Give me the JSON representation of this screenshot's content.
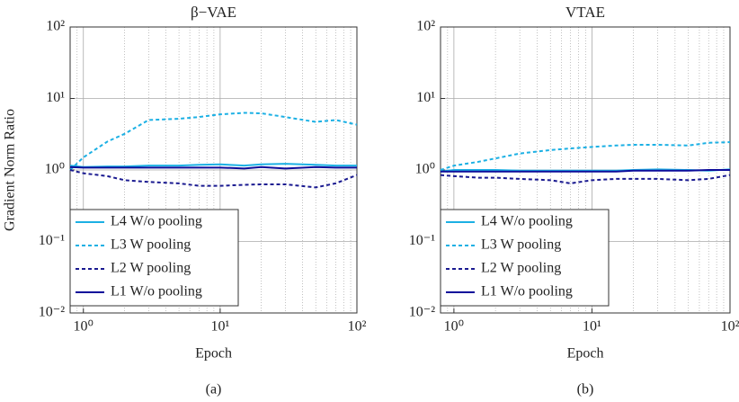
{
  "chart_data": [
    {
      "type": "line",
      "title": "β−VAE",
      "xlabel": "Epoch",
      "ylabel": "Gradient Norm Ratio",
      "caption": "(a)",
      "xscale": "log",
      "yscale": "log",
      "grid": true,
      "minor_grid": true,
      "legend": "lower left",
      "xlim": [
        0.8,
        100
      ],
      "ylim": [
        0.01,
        100
      ],
      "xticks": [
        {
          "value": 1,
          "label": "10⁰"
        },
        {
          "value": 10,
          "label": "10¹"
        },
        {
          "value": 100,
          "label": "10²"
        }
      ],
      "yticks": [
        {
          "value": 0.01,
          "label": "10⁻²"
        },
        {
          "value": 0.1,
          "label": "10⁻¹"
        },
        {
          "value": 1,
          "label": "10⁰"
        },
        {
          "value": 10,
          "label": "10¹"
        },
        {
          "value": 100,
          "label": "10²"
        }
      ],
      "x": [
        0.8,
        1,
        1.5,
        2,
        3,
        5,
        7,
        10,
        15,
        20,
        30,
        50,
        70,
        100
      ],
      "series": [
        {
          "name": "L4 W/o pooling",
          "color": "#1cb0e4",
          "line_style": "solid",
          "values": [
            1.15,
            1.1,
            1.12,
            1.12,
            1.15,
            1.15,
            1.18,
            1.2,
            1.15,
            1.2,
            1.22,
            1.18,
            1.15,
            1.15
          ]
        },
        {
          "name": "L3 W pooling",
          "color": "#1cb0e4",
          "line_style": "dashed",
          "values": [
            1.0,
            1.5,
            2.5,
            3.2,
            5.0,
            5.2,
            5.5,
            6.0,
            6.3,
            6.2,
            5.5,
            4.7,
            5.0,
            4.3
          ]
        },
        {
          "name": "L2 W pooling",
          "color": "#1a1a90",
          "line_style": "dashed",
          "values": [
            1.0,
            0.9,
            0.82,
            0.72,
            0.68,
            0.65,
            0.6,
            0.6,
            0.62,
            0.63,
            0.63,
            0.57,
            0.65,
            0.85
          ]
        },
        {
          "name": "L1 W/o pooling",
          "color": "#0c0c9a",
          "line_style": "solid",
          "values": [
            1.1,
            1.08,
            1.08,
            1.08,
            1.08,
            1.08,
            1.08,
            1.08,
            1.05,
            1.1,
            1.05,
            1.1,
            1.08,
            1.08
          ]
        }
      ]
    },
    {
      "type": "line",
      "title": "VTAE",
      "xlabel": "Epoch",
      "caption": "(b)",
      "xscale": "log",
      "yscale": "log",
      "grid": true,
      "minor_grid": true,
      "legend": "lower left",
      "xlim": [
        0.8,
        100
      ],
      "ylim": [
        0.01,
        100
      ],
      "xticks": [
        {
          "value": 1,
          "label": "10⁰"
        },
        {
          "value": 10,
          "label": "10¹"
        },
        {
          "value": 100,
          "label": "10²"
        }
      ],
      "yticks": [
        {
          "value": 0.01,
          "label": "10⁻²"
        },
        {
          "value": 0.1,
          "label": "10⁻¹"
        },
        {
          "value": 1,
          "label": "10⁰"
        },
        {
          "value": 10,
          "label": "10¹"
        },
        {
          "value": 100,
          "label": "10²"
        }
      ],
      "x": [
        0.8,
        1,
        1.5,
        2,
        3,
        5,
        7,
        10,
        15,
        20,
        30,
        50,
        70,
        100
      ],
      "series": [
        {
          "name": "L4 W/o pooling",
          "color": "#1cb0e4",
          "line_style": "solid",
          "values": [
            0.95,
            1.0,
            1.0,
            1.0,
            0.98,
            0.98,
            0.98,
            0.98,
            0.98,
            1.0,
            1.02,
            1.0,
            0.98,
            1.02
          ]
        },
        {
          "name": "L3 W pooling",
          "color": "#1cb0e4",
          "line_style": "dashed",
          "values": [
            1.0,
            1.15,
            1.3,
            1.45,
            1.7,
            1.9,
            2.0,
            2.1,
            2.2,
            2.25,
            2.25,
            2.2,
            2.4,
            2.45
          ]
        },
        {
          "name": "L2 W pooling",
          "color": "#1a1a90",
          "line_style": "dashed",
          "values": [
            0.85,
            0.82,
            0.78,
            0.78,
            0.75,
            0.72,
            0.65,
            0.72,
            0.75,
            0.75,
            0.75,
            0.72,
            0.75,
            0.85
          ]
        },
        {
          "name": "L1 W/o pooling",
          "color": "#0c0c9a",
          "line_style": "solid",
          "values": [
            0.95,
            0.95,
            0.95,
            0.95,
            0.95,
            0.95,
            0.95,
            0.95,
            0.95,
            0.98,
            0.98,
            0.98,
            1.0,
            1.0
          ]
        }
      ]
    }
  ]
}
